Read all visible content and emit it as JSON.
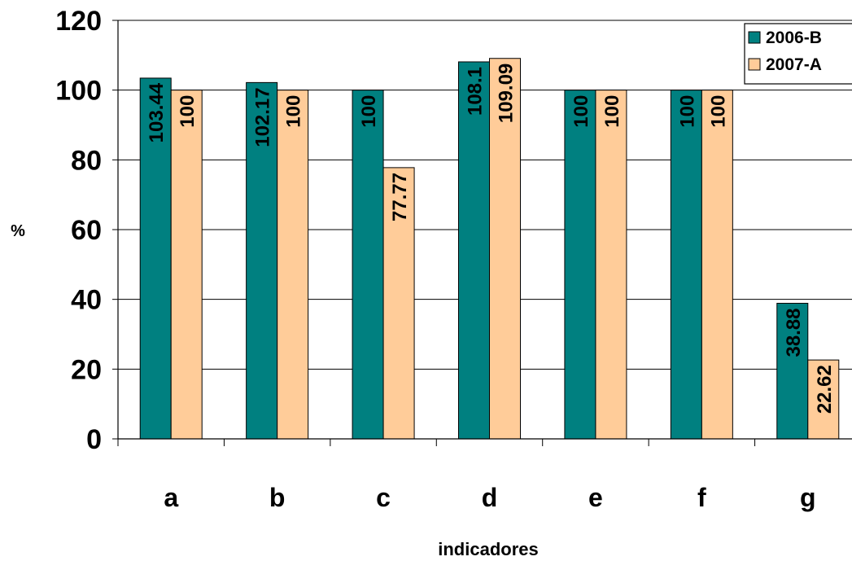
{
  "chart_data": {
    "type": "bar",
    "categories": [
      "a",
      "b",
      "c",
      "d",
      "e",
      "f",
      "g"
    ],
    "series": [
      {
        "name": "2006-B",
        "color": "#008080",
        "values": [
          103.44,
          102.17,
          100,
          108.1,
          100,
          100,
          38.88
        ],
        "labels": [
          "103.44",
          "102.17",
          "100",
          "108.1",
          "100",
          "100",
          "38.88"
        ]
      },
      {
        "name": "2007-A",
        "color": "#FFCC99",
        "values": [
          100,
          100,
          77.77,
          109.09,
          100,
          100,
          22.62
        ],
        "labels": [
          "100",
          "100",
          "77.77",
          "109.09",
          "100",
          "100",
          "22.62"
        ]
      }
    ],
    "xlabel": "indicadores",
    "ylabel": "%",
    "ylim": [
      0,
      120
    ],
    "yticks": [
      "0",
      "20",
      "40",
      "60",
      "80",
      "100",
      "120"
    ],
    "grid": true,
    "legend": "top-right"
  }
}
